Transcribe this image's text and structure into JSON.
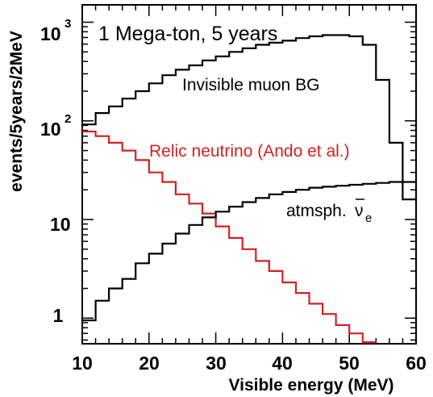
{
  "chart_data": {
    "type": "line",
    "style": "step",
    "xlabel": "Visible energy (MeV)",
    "ylabel": "events/5years/2MeV",
    "xlim": [
      10,
      60
    ],
    "ylim": [
      0.55,
      1500
    ],
    "yscale": "log",
    "grid": false,
    "xticks": [
      10,
      20,
      30,
      40,
      50,
      60
    ],
    "yticks": [
      {
        "value": 1,
        "label": "1"
      },
      {
        "value": 10,
        "label": "10"
      },
      {
        "value": 100,
        "label": "10",
        "exp": "2"
      },
      {
        "value": 1000,
        "label": "10",
        "exp": "3"
      }
    ],
    "annotations": {
      "title": "1 Mega-ton, 5 years",
      "muon": "Invisible muon BG",
      "relic": "Relic neutrino (Ando et al.)",
      "atm_prefix": "atmsph.",
      "atm_symbol": "ν",
      "atm_sub": "e"
    },
    "colors": {
      "black": "#000000",
      "red": "#d42020"
    },
    "bin_edges": [
      10,
      12,
      14,
      16,
      18,
      20,
      22,
      24,
      26,
      28,
      30,
      32,
      34,
      36,
      38,
      40,
      42,
      44,
      46,
      48,
      50,
      52,
      54,
      56,
      58,
      60
    ],
    "series": [
      {
        "name": "Invisible muon BG",
        "color": "#000000",
        "values": [
          92,
          120,
          140,
          168,
          200,
          240,
          290,
          330,
          365,
          410,
          450,
          500,
          545,
          590,
          620,
          650,
          690,
          720,
          740,
          740,
          720,
          590,
          260,
          60,
          16
        ]
      },
      {
        "name": "Relic neutrino (Ando et al.)",
        "color": "#d42020",
        "values": [
          78,
          70,
          60,
          50,
          40,
          30,
          24,
          18,
          14.5,
          11.5,
          8.5,
          6.5,
          5,
          3.8,
          3,
          2.3,
          1.8,
          1.4,
          1.1,
          0.85,
          0.7,
          0.57
        ]
      },
      {
        "name": "atmsph. ν̄e",
        "color": "#000000",
        "values": [
          0.95,
          1.5,
          2,
          2.5,
          3.6,
          4.5,
          5.7,
          7.2,
          8.8,
          10.5,
          12,
          13.5,
          15,
          16.5,
          18,
          19,
          20,
          21,
          21.5,
          22,
          22.5,
          23,
          23.5,
          24,
          24
        ]
      }
    ]
  }
}
